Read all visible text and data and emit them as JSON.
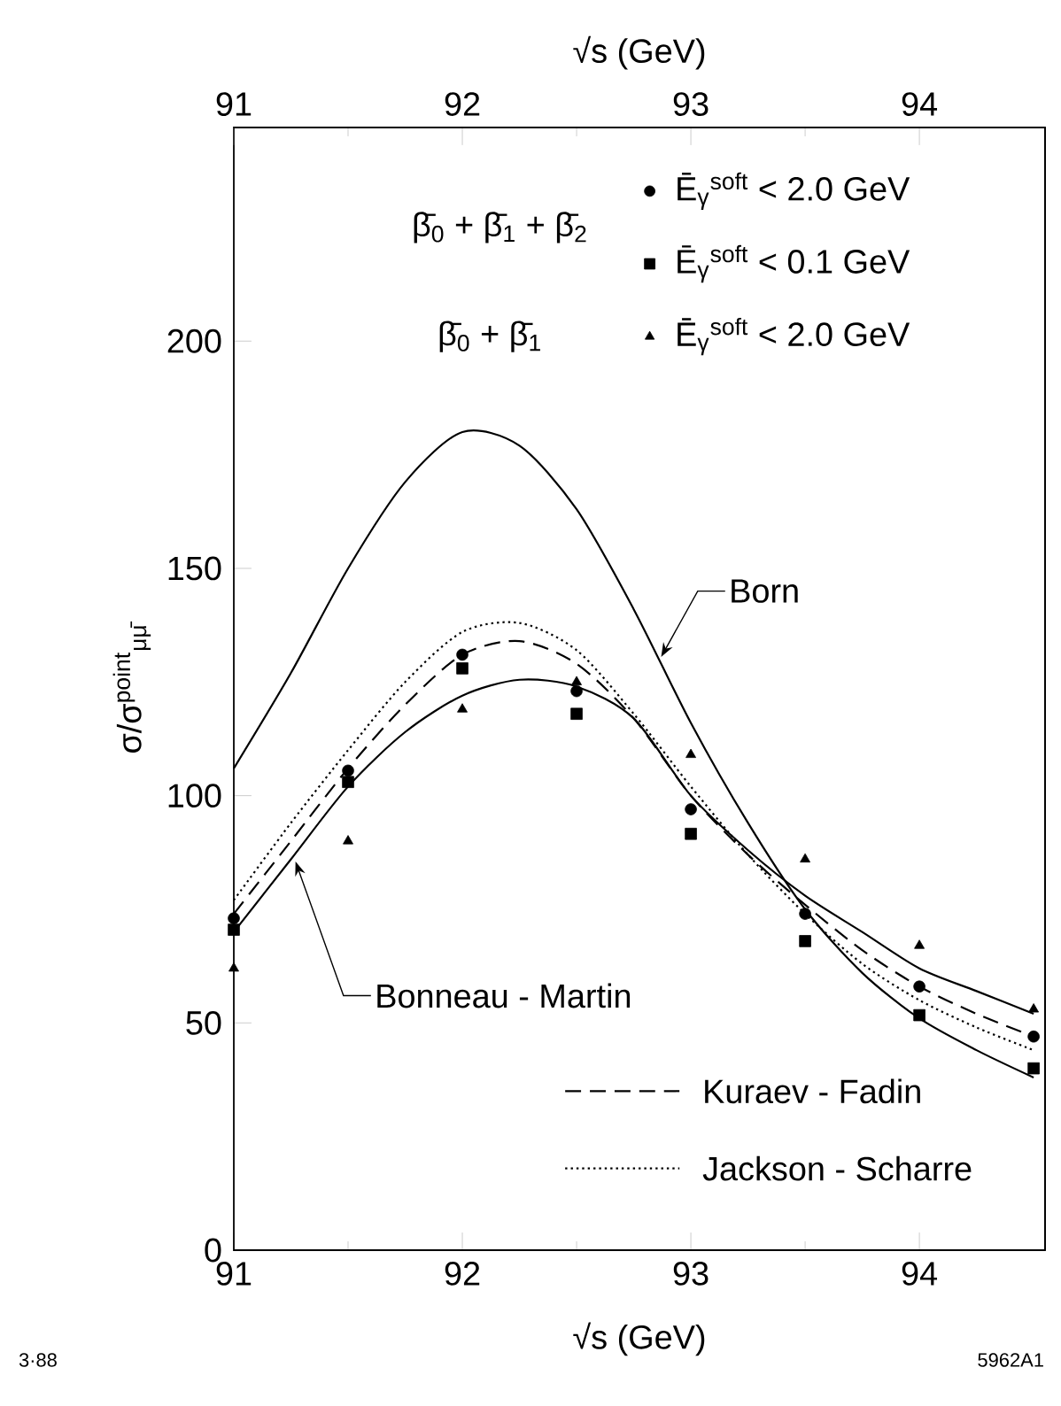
{
  "chart_data": {
    "type": "line",
    "xlabel": "√s  (GeV)",
    "x2label": "√s  (GeV)",
    "ylabel": "σ/σ$^{point}$$_{μμ̄}$",
    "xlim": [
      91,
      94.55
    ],
    "x2lim": [
      91,
      94.55
    ],
    "ylim": [
      0,
      247
    ],
    "xticks": [
      91,
      92,
      93,
      94
    ],
    "x2ticks": [
      91,
      92,
      93,
      94
    ],
    "yticks": [
      0,
      50,
      100,
      150,
      200
    ],
    "legend": "right",
    "series": [
      {
        "type": "scatter",
        "name": "Ē$_{γ}$$^{soft}$ < 2.0 GeV",
        "color": "#000000",
        "marker": "circle",
        "x": [
          91,
          91.5,
          92,
          92.5,
          93,
          93.5,
          94,
          94.5
        ],
        "values": [
          73,
          105.5,
          131,
          123,
          97,
          74,
          58,
          47
        ]
      },
      {
        "type": "scatter",
        "name": "Ē$_{γ}$$^{soft}$ < 0.1 GeV",
        "color": "#000000",
        "marker": "square",
        "x": [
          91,
          91.5,
          92,
          92.5,
          93,
          93.5,
          94,
          94.5
        ],
        "values": [
          70.5,
          103,
          128,
          118,
          91.6,
          68,
          51.7,
          40
        ]
      },
      {
        "type": "scatter",
        "name": "Ē$_{γ}$$^{soft}$ < 2.0 GeV",
        "color": "#000000",
        "marker": "triangle",
        "x": [
          91,
          91.5,
          92,
          92.5,
          93,
          93.5,
          94,
          94.5
        ],
        "values": [
          62,
          90,
          119,
          125,
          109,
          86,
          67,
          53
        ]
      },
      {
        "color": "#000000",
        "line_style": "solid",
        "x": [
          91,
          91.25,
          91.5,
          91.75,
          92,
          92.25,
          92.5,
          92.75,
          93,
          93.25,
          93.5,
          93.75,
          94,
          94.25,
          94.5
        ],
        "values": [
          106,
          127,
          150,
          169,
          180,
          177,
          163,
          141,
          116,
          94,
          75,
          61,
          51,
          44,
          38
        ]
      },
      {
        "color": "#000000",
        "line_style": "solid",
        "x": [
          91,
          91.25,
          91.5,
          91.75,
          92,
          92.25,
          92.5,
          92.75,
          93,
          93.25,
          93.5,
          93.75,
          94,
          94.25,
          94.5
        ],
        "values": [
          70,
          86,
          102,
          114,
          122,
          125.5,
          124,
          117,
          100,
          88,
          78,
          70,
          62,
          57,
          52
        ]
      },
      {
        "name": "Kuraev - Fadin",
        "color": "#000000",
        "line_style": "dashed",
        "x": [
          91,
          91.25,
          91.5,
          91.75,
          92,
          92.25,
          92.5,
          92.75,
          93,
          93.25,
          93.5,
          93.75,
          94,
          94.25,
          94.5
        ],
        "values": [
          74,
          90,
          106,
          120,
          131,
          134,
          129,
          117,
          100,
          87,
          76,
          66,
          58,
          52,
          47
        ]
      },
      {
        "name": "Jackson - Scharre",
        "color": "#000000",
        "line_style": "dotted",
        "x": [
          91,
          91.25,
          91.5,
          91.75,
          92,
          92.25,
          92.5,
          92.75,
          93,
          93.25,
          93.5,
          93.75,
          94,
          94.25,
          94.5
        ],
        "values": [
          77,
          94,
          110,
          125,
          136,
          138,
          132,
          118,
          102,
          87,
          74,
          63,
          55,
          49,
          44
        ]
      }
    ],
    "annotations": [
      {
        "text": "Born",
        "x": 92.85,
        "y": 130
      },
      {
        "text": "Bonneau - Martin",
        "x": 91.25,
        "y": 86
      },
      "β̄$_{0}$ + β̄$_{1}$ + β̄$_{2}$",
      "β̄$_{0}$ + β̄$_{1}$",
      "3·88",
      "5962A1"
    ]
  }
}
